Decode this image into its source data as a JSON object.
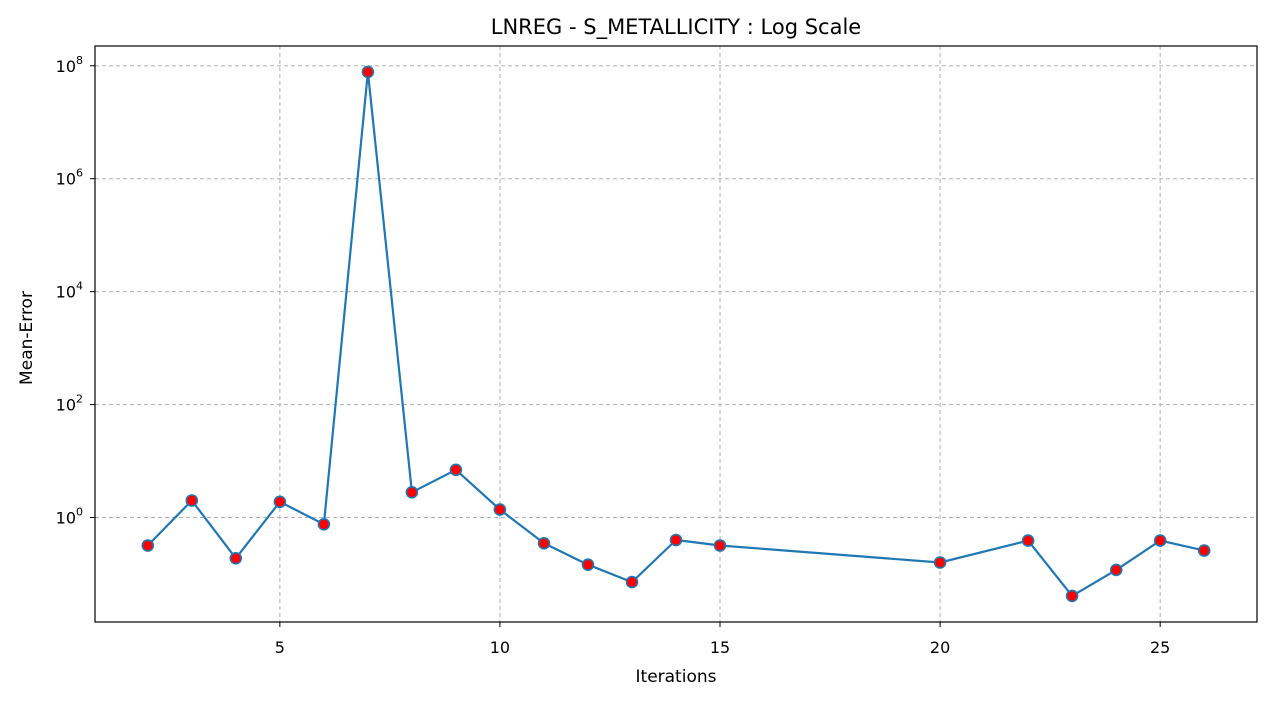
{
  "chart_data": {
    "type": "line",
    "title": "LNREG - S_METALLICITY : Log Scale",
    "xlabel": "Iterations",
    "ylabel": "Mean-Error",
    "yscale": "log",
    "xlim": [
      0.8,
      27.2
    ],
    "ylim_exp": [
      -1.85,
      8.35
    ],
    "xticks": [
      5,
      10,
      15,
      20,
      25
    ],
    "yticks_exp": [
      0,
      2,
      4,
      6,
      8
    ],
    "grid": true,
    "line_color": "#1f77b4",
    "marker_face": "#ff0000",
    "marker_edge": "#1f77b4",
    "series": [
      {
        "x": [
          2,
          3,
          4,
          5,
          6,
          7,
          8,
          9,
          10,
          11,
          12,
          13,
          14,
          15,
          20,
          22,
          23,
          24,
          25,
          26
        ],
        "y": [
          0.32,
          2.0,
          0.19,
          1.9,
          0.76,
          78000000,
          2.8,
          7.0,
          1.38,
          0.35,
          0.146,
          0.072,
          0.4,
          0.32,
          0.16,
          0.39,
          0.041,
          0.118,
          0.39,
          0.26
        ]
      }
    ]
  }
}
